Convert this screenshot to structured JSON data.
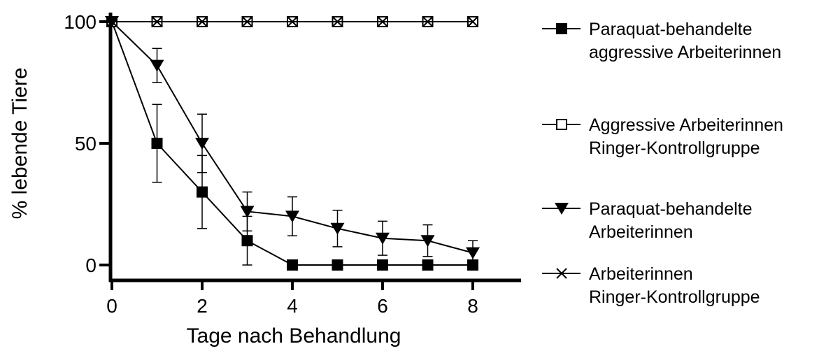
{
  "chart_data": {
    "type": "line",
    "title": "",
    "xlabel": "Tage nach Behandlung",
    "ylabel": "% lebende Tiere",
    "xlim": [
      0,
      9
    ],
    "ylim": [
      0,
      100
    ],
    "x_ticks": [
      "0",
      "2",
      "4",
      "6",
      "8"
    ],
    "y_ticks": [
      "0",
      "50",
      "100"
    ],
    "grid": false,
    "legend_position": "right",
    "x": [
      0,
      1,
      2,
      3,
      4,
      5,
      6,
      7,
      8
    ],
    "series": [
      {
        "name_lines": [
          "Paraquat-behandelte",
          "aggressive Arbeiterinnen"
        ],
        "marker": "filled-square",
        "values": [
          100,
          50,
          30,
          10,
          0,
          0,
          0,
          0,
          0
        ],
        "errors": [
          0,
          16,
          15,
          10,
          0,
          0,
          0,
          0,
          0
        ]
      },
      {
        "name_lines": [
          "Aggressive Arbeiterinnen",
          "Ringer-Kontrollgruppe"
        ],
        "marker": "open-square",
        "values": [
          100,
          100,
          100,
          100,
          100,
          100,
          100,
          100,
          100
        ],
        "errors": [
          0,
          0,
          0,
          0,
          0,
          0,
          0,
          0,
          0
        ]
      },
      {
        "name_lines": [
          "Paraquat-behandelte",
          "Arbeiterinnen"
        ],
        "marker": "filled-triangle-down",
        "values": [
          100,
          82,
          50,
          22,
          20,
          15,
          11,
          10,
          5
        ],
        "errors": [
          0,
          7,
          12,
          8,
          8,
          7.5,
          7,
          6.5,
          5
        ]
      },
      {
        "name_lines": [
          "Arbeiterinnen",
          "Ringer-Kontrollgruppe"
        ],
        "marker": "x",
        "values": [
          100,
          100,
          100,
          100,
          100,
          100,
          100,
          100,
          100
        ],
        "errors": [
          0,
          0,
          0,
          0,
          0,
          0,
          0,
          0,
          0
        ]
      }
    ]
  }
}
